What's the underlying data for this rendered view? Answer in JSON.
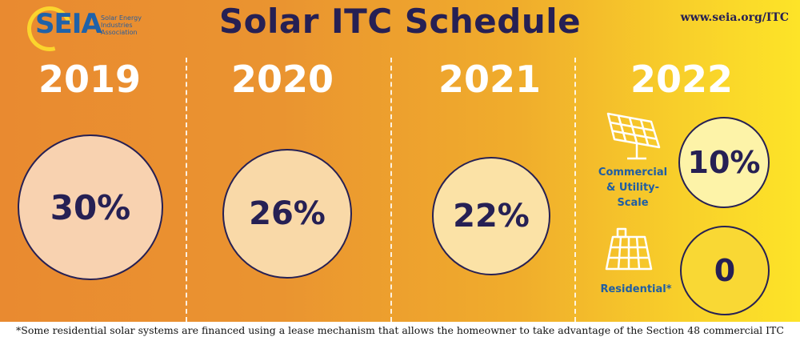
{
  "logo": {
    "name": "SEIA",
    "subtitle": "Solar Energy Industries Association"
  },
  "title": "Solar ITC Schedule",
  "url": "www.seia.org/ITC",
  "years": [
    {
      "year": "2019",
      "rate": "30%"
    },
    {
      "year": "2020",
      "rate": "26%"
    },
    {
      "year": "2021",
      "rate": "22%"
    },
    {
      "year": "2022"
    }
  ],
  "y2022": {
    "commercial_label_1": "Commercial",
    "commercial_label_2": "& Utility-",
    "commercial_label_3": "Scale",
    "commercial_rate": "10%",
    "residential_label": "Residential*",
    "residential_rate": "0"
  },
  "footnote": "*Some residential solar systems are financed using a lease mechanism that allows the homeowner to take advantage of the Section 48 commercial ITC",
  "colors": {
    "navy": "#262054",
    "blue_label": "#1f5ea3",
    "circle_fill_1": "#f8d2b0",
    "circle_fill_2": "#f9d9a8",
    "circle_fill_3": "#fbe2a6",
    "circle_fill_4": "#fdf3a8"
  }
}
